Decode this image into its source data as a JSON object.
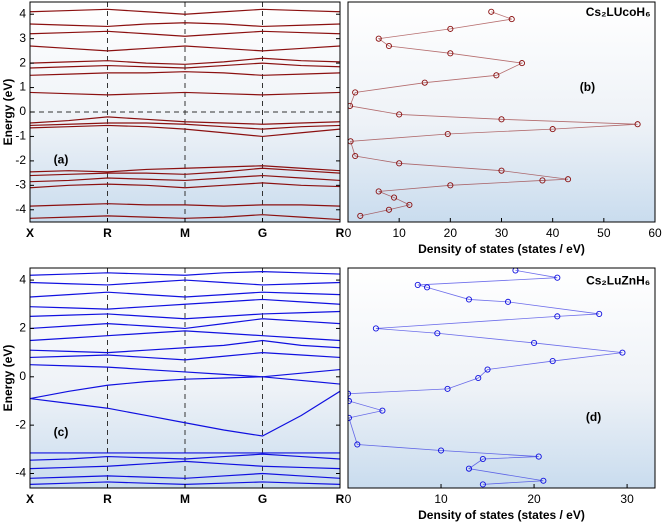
{
  "chart_data": [
    {
      "type": "bands",
      "ylabel": "Energy (eV)",
      "annotation": "(a)",
      "color": "#8b1010",
      "categories": [
        "X",
        null,
        "R",
        null,
        "M",
        null,
        "G",
        null,
        "R"
      ],
      "ylim": [
        -4.5,
        4.5
      ],
      "yticks": [
        -4,
        -3,
        -2,
        -1,
        0,
        1,
        2,
        3,
        4
      ],
      "reference_line": 0,
      "series": [
        {
          "values": [
            -4.35,
            -4.3,
            -4.25,
            -4.3,
            -4.35,
            -4.3,
            -4.2,
            -4.3,
            -4.4
          ]
        },
        {
          "values": [
            -3.85,
            -3.8,
            -3.75,
            -3.8,
            -3.8,
            -3.85,
            -3.8,
            -3.8,
            -3.85
          ]
        },
        {
          "values": [
            -3.1,
            -3.0,
            -2.95,
            -3.0,
            -3.1,
            -3.0,
            -2.9,
            -3.0,
            -3.05
          ]
        },
        {
          "values": [
            -2.85,
            -2.8,
            -2.7,
            -2.75,
            -2.8,
            -2.7,
            -2.6,
            -2.7,
            -2.8
          ]
        },
        {
          "values": [
            -2.6,
            -2.55,
            -2.5,
            -2.5,
            -2.55,
            -2.45,
            -2.3,
            -2.4,
            -2.5
          ]
        },
        {
          "values": [
            -2.45,
            -2.4,
            -2.45,
            -2.35,
            -2.3,
            -2.25,
            -2.2,
            -2.3,
            -2.4
          ]
        },
        {
          "values": [
            -0.65,
            -0.6,
            -0.55,
            -0.6,
            -0.7,
            -0.85,
            -1.0,
            -0.85,
            -0.7
          ]
        },
        {
          "values": [
            -0.55,
            -0.5,
            -0.45,
            -0.45,
            -0.5,
            -0.6,
            -0.7,
            -0.6,
            -0.55
          ]
        },
        {
          "values": [
            -0.45,
            -0.35,
            -0.2,
            -0.3,
            -0.4,
            -0.45,
            -0.5,
            -0.45,
            -0.4
          ]
        },
        {
          "values": [
            0.8,
            0.75,
            0.7,
            0.75,
            0.8,
            0.75,
            0.7,
            0.75,
            0.8
          ]
        },
        {
          "values": [
            1.5,
            1.55,
            1.6,
            1.6,
            1.65,
            1.6,
            1.5,
            1.55,
            1.6
          ]
        },
        {
          "values": [
            1.8,
            1.85,
            1.9,
            1.85,
            1.8,
            1.9,
            2.0,
            1.9,
            1.85
          ]
        },
        {
          "values": [
            2.0,
            2.05,
            2.1,
            2.0,
            1.95,
            2.05,
            2.2,
            2.1,
            2.05
          ]
        },
        {
          "values": [
            2.7,
            2.6,
            2.5,
            2.6,
            2.7,
            2.6,
            2.5,
            2.6,
            2.7
          ]
        },
        {
          "values": [
            3.2,
            3.25,
            3.3,
            3.2,
            3.1,
            3.2,
            3.3,
            3.25,
            3.2
          ]
        },
        {
          "values": [
            3.6,
            3.55,
            3.5,
            3.6,
            3.65,
            3.6,
            3.5,
            3.55,
            3.6
          ]
        },
        {
          "values": [
            4.1,
            4.15,
            4.2,
            4.1,
            4.0,
            4.1,
            4.2,
            4.15,
            4.1
          ]
        }
      ]
    },
    {
      "type": "dos",
      "title": "Cs₂LUcoH₆",
      "annotation": "(b)",
      "xlabel": "Density of states (states / eV)",
      "color": "#8b1010",
      "xlim": [
        0,
        60
      ],
      "xticks": [
        0,
        10,
        20,
        30,
        40,
        50,
        60
      ],
      "ylim": [
        -4.5,
        4.5
      ],
      "x": [
        2.4,
        8,
        12,
        9,
        6,
        20,
        38,
        43,
        30,
        10,
        1.4,
        0.5,
        19.5,
        40,
        56.6,
        30,
        10,
        0.4,
        1.4,
        15,
        29,
        34,
        20,
        8,
        6,
        20,
        32,
        28
      ],
      "y": [
        -4.25,
        -4.0,
        -3.8,
        -3.5,
        -3.25,
        -3.0,
        -2.8,
        -2.75,
        -2.4,
        -2.1,
        -1.8,
        -1.2,
        -0.9,
        -0.7,
        -0.5,
        -0.3,
        -0.1,
        0.25,
        0.8,
        1.2,
        1.5,
        2.0,
        2.4,
        2.7,
        3.0,
        3.4,
        3.8,
        4.1
      ]
    },
    {
      "type": "bands",
      "ylabel": "Energy (eV)",
      "annotation": "(c)",
      "color": "#1010e0",
      "categories": [
        "X",
        null,
        "R",
        null,
        "M",
        null,
        "G",
        null,
        "R"
      ],
      "ylim": [
        -4.6,
        4.5
      ],
      "yticks": [
        -4,
        -2,
        0,
        2,
        4
      ],
      "series": [
        {
          "values": [
            -4.45,
            -4.4,
            -4.35,
            -4.4,
            -4.45,
            -4.4,
            -4.35,
            -4.4,
            -4.45
          ]
        },
        {
          "values": [
            -4.2,
            -4.15,
            -4.1,
            -4.15,
            -4.2,
            -4.1,
            -4.0,
            -4.1,
            -4.2
          ]
        },
        {
          "values": [
            -3.8,
            -3.75,
            -3.7,
            -3.6,
            -3.5,
            -3.6,
            -3.7,
            -3.75,
            -3.8
          ]
        },
        {
          "values": [
            -3.45,
            -3.4,
            -3.3,
            -3.35,
            -3.4,
            -3.3,
            -3.2,
            -3.3,
            -3.4
          ]
        },
        {
          "values": [
            -3.15,
            -3.15,
            -3.15,
            -3.15,
            -3.15,
            -3.15,
            -3.15,
            -3.15,
            -3.15
          ]
        },
        {
          "values": [
            -0.9,
            -1.1,
            -1.3,
            -1.6,
            -1.9,
            -2.2,
            -2.45,
            -1.6,
            -0.6
          ]
        },
        {
          "values": [
            -0.9,
            -0.6,
            -0.35,
            -0.2,
            -0.1,
            -0.05,
            0.0,
            -0.15,
            -0.3
          ]
        },
        {
          "values": [
            0.5,
            0.45,
            0.4,
            0.3,
            0.2,
            0.1,
            0.0,
            0.15,
            0.3
          ]
        },
        {
          "values": [
            0.8,
            0.85,
            0.9,
            0.8,
            0.7,
            0.85,
            1.0,
            0.9,
            0.8
          ]
        },
        {
          "values": [
            1.1,
            1.05,
            1.0,
            1.1,
            1.2,
            1.3,
            1.5,
            1.3,
            1.2
          ]
        },
        {
          "values": [
            1.5,
            1.6,
            1.7,
            1.8,
            1.9,
            1.8,
            1.7,
            1.6,
            1.5
          ]
        },
        {
          "values": [
            2.0,
            2.1,
            2.2,
            2.1,
            2.0,
            2.2,
            2.4,
            2.3,
            2.2
          ]
        },
        {
          "values": [
            2.5,
            2.55,
            2.6,
            2.5,
            2.4,
            2.5,
            2.6,
            2.65,
            2.7
          ]
        },
        {
          "values": [
            2.9,
            2.85,
            2.8,
            2.9,
            3.0,
            3.1,
            3.2,
            3.1,
            3.0
          ]
        },
        {
          "values": [
            3.3,
            3.4,
            3.5,
            3.4,
            3.3,
            3.4,
            3.5,
            3.45,
            3.4
          ]
        },
        {
          "values": [
            3.9,
            3.85,
            3.8,
            3.9,
            4.0,
            3.9,
            3.8,
            3.85,
            3.9
          ]
        },
        {
          "values": [
            4.2,
            4.25,
            4.3,
            4.25,
            4.2,
            4.3,
            4.35,
            4.3,
            4.25
          ]
        }
      ]
    },
    {
      "type": "dos",
      "title": "Cs₂LuZnH₆",
      "annotation": "(d)",
      "xlabel": "Density of states (states / eV)",
      "color": "#1010e0",
      "xlim": [
        0,
        33
      ],
      "xticks": [
        0,
        10,
        20,
        30
      ],
      "ylim": [
        -4.6,
        4.5
      ],
      "x": [
        14.5,
        21,
        13,
        14.5,
        20.5,
        10,
        1,
        0.1,
        3.7,
        0.1,
        0,
        10.7,
        14,
        15,
        22,
        29.5,
        20,
        9.6,
        3,
        22.5,
        27,
        17.2,
        13,
        8.5,
        7.5,
        22.5,
        18
      ],
      "y": [
        -4.45,
        -4.3,
        -3.8,
        -3.4,
        -3.3,
        -3.05,
        -2.8,
        -1.7,
        -1.4,
        -1.0,
        -0.7,
        -0.5,
        -0.05,
        0.3,
        0.65,
        1.0,
        1.4,
        1.8,
        2.0,
        2.5,
        2.6,
        3.1,
        3.2,
        3.7,
        3.8,
        4.1,
        4.4
      ]
    }
  ]
}
